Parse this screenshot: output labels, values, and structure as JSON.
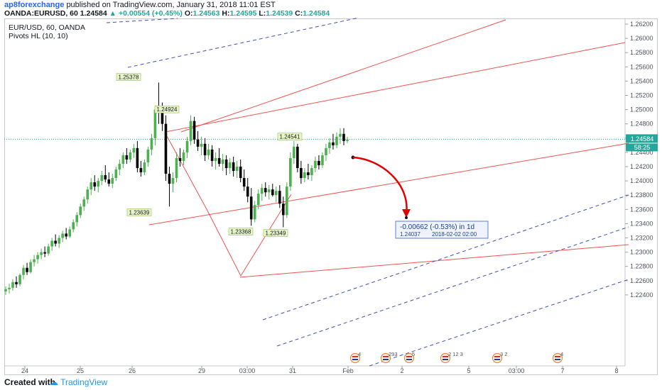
{
  "header": {
    "author": "ap8forexchange",
    "published": "published on TradingView.com, January 31, 2018 11:01 EST",
    "symbol": "OANDA:EURUSD, 60",
    "last": "1.24584",
    "change": "▲ +0.00554 (+0.45%)",
    "o_label": "O:",
    "o": "1.24563",
    "h_label": "H:",
    "h": "1.24595",
    "l_label": "L:",
    "l": "1.24539",
    "c_label": "C:",
    "c": "1.24584"
  },
  "legend": {
    "line1": "EUR/USD, 60, OANDA",
    "line2": "Pivots HL (10, 10)"
  },
  "footer": {
    "created": "Created with",
    "brand": "TradingView"
  },
  "colors": {
    "up": "#26a69a",
    "down": "#ef5350",
    "candle_up": "#4caf50",
    "candle_down": "#000000",
    "channel_red": "#ef5350",
    "channel_blue": "#3f51b5",
    "arrow": "#e30000",
    "price_tag": "#26a69a",
    "pivot_label_bg": "#e8f5c8"
  },
  "chart_data": {
    "type": "candlestick",
    "price_axis": [
      "1.26200",
      "1.26000",
      "1.25800",
      "1.25600",
      "1.25400",
      "1.25200",
      "1.25000",
      "1.24800",
      "1.24600",
      "1.24400",
      "1.24200",
      "1.24000",
      "1.23800",
      "1.23600",
      "1.23400",
      "1.23200",
      "1.23000",
      "1.22800",
      "1.22600",
      "1.22400"
    ],
    "ylim": [
      1.2238,
      1.2625
    ],
    "time_axis": [
      "24",
      "25",
      "26",
      "29",
      "03:00",
      "31",
      "Feb",
      "2",
      "5",
      "03:00",
      "7",
      "8"
    ],
    "current_price": "1.24584",
    "countdown": "58:25",
    "pivots": [
      {
        "label": "1.25378",
        "value": 1.25378,
        "type": "high"
      },
      {
        "label": "1.24924",
        "value": 1.24924,
        "type": "high"
      },
      {
        "label": "1.23639",
        "value": 1.23639,
        "type": "low"
      },
      {
        "label": "1.24541",
        "value": 1.24541,
        "type": "high"
      },
      {
        "label": "1.23368",
        "value": 1.23368,
        "type": "low"
      },
      {
        "label": "1.23349",
        "value": 1.23349,
        "type": "low"
      }
    ],
    "projection": {
      "change": "-0.00662 (-0.53%) in 1d",
      "target": "1.24037",
      "date": "2018-02-02  02:00"
    },
    "event_markers": [
      "4",
      "293",
      "5",
      "2",
      "12",
      "3",
      "3",
      "2",
      "4"
    ],
    "candles": [
      [
        1.2245,
        1.2252,
        1.224,
        1.2248
      ],
      [
        1.2248,
        1.2256,
        1.2242,
        1.225
      ],
      [
        1.225,
        1.2262,
        1.2246,
        1.2258
      ],
      [
        1.2258,
        1.2266,
        1.225,
        1.2255
      ],
      [
        1.2255,
        1.227,
        1.2252,
        1.2268
      ],
      [
        1.2268,
        1.2282,
        1.2262,
        1.2278
      ],
      [
        1.2278,
        1.2285,
        1.2268,
        1.2272
      ],
      [
        1.2272,
        1.229,
        1.227,
        1.2286
      ],
      [
        1.2286,
        1.2296,
        1.228,
        1.229
      ],
      [
        1.229,
        1.23,
        1.2284,
        1.2296
      ],
      [
        1.2296,
        1.2305,
        1.229,
        1.23
      ],
      [
        1.23,
        1.2308,
        1.2293,
        1.2298
      ],
      [
        1.2298,
        1.2312,
        1.2295,
        1.2308
      ],
      [
        1.2308,
        1.232,
        1.2302,
        1.2316
      ],
      [
        1.2316,
        1.2325,
        1.2308,
        1.2312
      ],
      [
        1.2312,
        1.2324,
        1.2306,
        1.232
      ],
      [
        1.232,
        1.233,
        1.2314,
        1.2326
      ],
      [
        1.2326,
        1.2334,
        1.2318,
        1.2322
      ],
      [
        1.2322,
        1.2336,
        1.232,
        1.2332
      ],
      [
        1.2332,
        1.2346,
        1.2328,
        1.2342
      ],
      [
        1.2342,
        1.2356,
        1.2336,
        1.2352
      ],
      [
        1.2352,
        1.2368,
        1.2348,
        1.2364
      ],
      [
        1.2364,
        1.2378,
        1.2358,
        1.2374
      ],
      [
        1.2374,
        1.2392,
        1.2368,
        1.2388
      ],
      [
        1.2388,
        1.2404,
        1.238,
        1.2398
      ],
      [
        1.2398,
        1.2408,
        1.2386,
        1.2392
      ],
      [
        1.2392,
        1.2404,
        1.2384,
        1.24
      ],
      [
        1.24,
        1.2414,
        1.2394,
        1.2408
      ],
      [
        1.2408,
        1.2422,
        1.2398,
        1.2402
      ],
      [
        1.2402,
        1.2412,
        1.2392,
        1.2396
      ],
      [
        1.2396,
        1.241,
        1.239,
        1.2404
      ],
      [
        1.2404,
        1.242,
        1.24,
        1.2416
      ],
      [
        1.2416,
        1.243,
        1.2408,
        1.2424
      ],
      [
        1.2424,
        1.244,
        1.2418,
        1.2436
      ],
      [
        1.2436,
        1.2446,
        1.2424,
        1.243
      ],
      [
        1.243,
        1.2444,
        1.2426,
        1.244
      ],
      [
        1.244,
        1.2452,
        1.2432,
        1.2446
      ],
      [
        1.2446,
        1.2456,
        1.2412,
        1.2418
      ],
      [
        1.2418,
        1.2428,
        1.2406,
        1.2412
      ],
      [
        1.2412,
        1.243,
        1.2408,
        1.2426
      ],
      [
        1.2426,
        1.2448,
        1.242,
        1.2444
      ],
      [
        1.2444,
        1.2466,
        1.2436,
        1.246
      ],
      [
        1.246,
        1.2506,
        1.245,
        1.25
      ],
      [
        1.25,
        1.2538,
        1.248,
        1.2496
      ],
      [
        1.2496,
        1.251,
        1.247,
        1.248
      ],
      [
        1.248,
        1.2492,
        1.24,
        1.241
      ],
      [
        1.241,
        1.242,
        1.2364,
        1.2396
      ],
      [
        1.2396,
        1.2412,
        1.2384,
        1.2404
      ],
      [
        1.2404,
        1.244,
        1.2398,
        1.2432
      ],
      [
        1.2432,
        1.2446,
        1.242,
        1.2428
      ],
      [
        1.2428,
        1.2444,
        1.2422,
        1.244
      ],
      [
        1.244,
        1.2462,
        1.2432,
        1.2456
      ],
      [
        1.2456,
        1.2492,
        1.245,
        1.2484
      ],
      [
        1.2484,
        1.249,
        1.2452,
        1.2458
      ],
      [
        1.2458,
        1.247,
        1.2442,
        1.2448
      ],
      [
        1.2448,
        1.2462,
        1.2436,
        1.2452
      ],
      [
        1.2452,
        1.246,
        1.2428,
        1.2436
      ],
      [
        1.2436,
        1.2452,
        1.243,
        1.2444
      ],
      [
        1.2444,
        1.245,
        1.242,
        1.2428
      ],
      [
        1.2428,
        1.244,
        1.2416,
        1.2432
      ],
      [
        1.2432,
        1.2446,
        1.242,
        1.2424
      ],
      [
        1.2424,
        1.2438,
        1.2414,
        1.243
      ],
      [
        1.243,
        1.2436,
        1.2408,
        1.2418
      ],
      [
        1.2418,
        1.2432,
        1.241,
        1.2426
      ],
      [
        1.2426,
        1.2434,
        1.2406,
        1.2414
      ],
      [
        1.2414,
        1.2428,
        1.2404,
        1.242
      ],
      [
        1.242,
        1.243,
        1.2398,
        1.2404
      ],
      [
        1.2404,
        1.2416,
        1.2386,
        1.2392
      ],
      [
        1.2392,
        1.2404,
        1.237,
        1.2378
      ],
      [
        1.2378,
        1.239,
        1.2337,
        1.2346
      ],
      [
        1.2346,
        1.2372,
        1.2342,
        1.2366
      ],
      [
        1.2366,
        1.2388,
        1.236,
        1.2382
      ],
      [
        1.2382,
        1.2396,
        1.2372,
        1.239
      ],
      [
        1.239,
        1.2398,
        1.2378,
        1.2384
      ],
      [
        1.2384,
        1.2394,
        1.2374,
        1.2388
      ],
      [
        1.2388,
        1.2396,
        1.2378,
        1.238
      ],
      [
        1.238,
        1.2392,
        1.237,
        1.2386
      ],
      [
        1.2386,
        1.2394,
        1.2362,
        1.2368
      ],
      [
        1.2368,
        1.2378,
        1.2335,
        1.2352
      ],
      [
        1.2352,
        1.2398,
        1.2348,
        1.2392
      ],
      [
        1.2392,
        1.244,
        1.2386,
        1.2432
      ],
      [
        1.2432,
        1.2456,
        1.2424,
        1.2448
      ],
      [
        1.2448,
        1.2452,
        1.2412,
        1.2418
      ],
      [
        1.2418,
        1.2428,
        1.2396,
        1.2404
      ],
      [
        1.2404,
        1.2418,
        1.2398,
        1.2412
      ],
      [
        1.2412,
        1.2424,
        1.2402,
        1.2408
      ],
      [
        1.2408,
        1.2422,
        1.24,
        1.2418
      ],
      [
        1.2418,
        1.2434,
        1.2412,
        1.2428
      ],
      [
        1.2428,
        1.2436,
        1.2416,
        1.2422
      ],
      [
        1.2422,
        1.244,
        1.2418,
        1.2436
      ],
      [
        1.2436,
        1.2452,
        1.2428,
        1.2446
      ],
      [
        1.2446,
        1.246,
        1.2438,
        1.2454
      ],
      [
        1.2454,
        1.2466,
        1.2444,
        1.245
      ],
      [
        1.245,
        1.2468,
        1.2446,
        1.2462
      ],
      [
        1.2462,
        1.2474,
        1.2452,
        1.2466
      ],
      [
        1.2466,
        1.2474,
        1.245,
        1.2456
      ],
      [
        1.2456,
        1.2462,
        1.2453,
        1.2458
      ]
    ]
  }
}
